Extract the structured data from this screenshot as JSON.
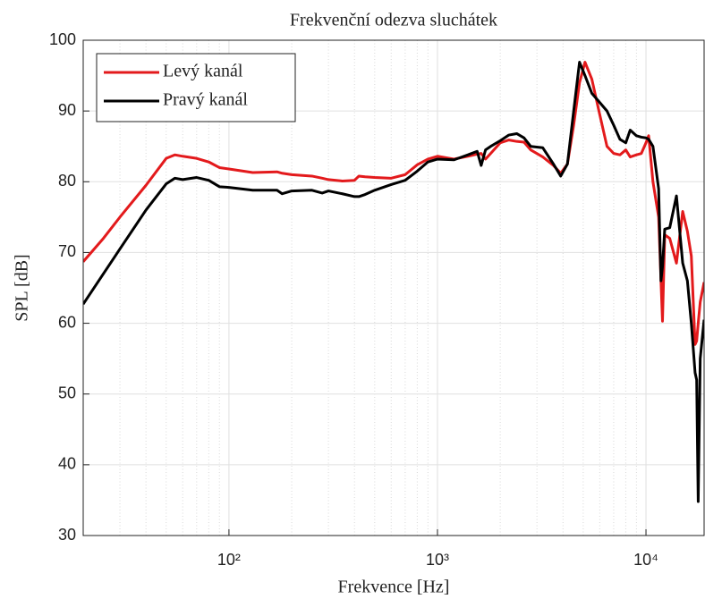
{
  "chart_data": {
    "type": "line",
    "title": "Frekvenční odezva sluchátek",
    "xlabel": "Frekvence [Hz]",
    "ylabel": "SPL [dB]",
    "xscale": "log",
    "grid": true,
    "legend": "upper left",
    "xlim": [
      20,
      19000
    ],
    "ylim": [
      30,
      100
    ],
    "xticks": [
      {
        "value": 100,
        "label": "10²"
      },
      {
        "value": 1000,
        "label": "10³"
      },
      {
        "value": 10000,
        "label": "10⁴"
      }
    ],
    "yticks": [
      30,
      40,
      50,
      60,
      70,
      80,
      90,
      100
    ],
    "x": [
      20,
      25,
      30,
      40,
      50,
      55,
      60,
      70,
      80,
      90,
      100,
      130,
      170,
      180,
      200,
      250,
      280,
      300,
      350,
      400,
      420,
      450,
      500,
      600,
      700,
      800,
      900,
      1000,
      1200,
      1400,
      1550,
      1620,
      1700,
      1800,
      2000,
      2200,
      2400,
      2600,
      2800,
      3200,
      3600,
      3900,
      4200,
      4500,
      4800,
      5100,
      5500,
      6000,
      6500,
      7000,
      7500,
      8000,
      8400,
      9000,
      9500,
      10000,
      10300,
      10800,
      11500,
      11800,
      12000,
      12300,
      13000,
      14000,
      15000,
      15800,
      16500,
      17200,
      17500,
      17800,
      18200,
      19000
    ],
    "series": [
      {
        "name": "Levý kanál",
        "color": "#e31a1c",
        "values": [
          68.7,
          72,
          75,
          79.5,
          83.3,
          83.8,
          83.6,
          83.3,
          82.8,
          82,
          81.8,
          81.3,
          81.4,
          81.2,
          81,
          80.8,
          80.5,
          80.3,
          80.1,
          80.2,
          80.8,
          80.7,
          80.6,
          80.5,
          81,
          82.4,
          83.2,
          83.6,
          83.2,
          83.6,
          83.9,
          84,
          83.2,
          84,
          85.5,
          85.9,
          85.7,
          85.6,
          84.5,
          83.5,
          82.3,
          81.2,
          82.5,
          88,
          94,
          96.9,
          94.5,
          89.5,
          85,
          84,
          83.8,
          84.5,
          83.5,
          83.8,
          84,
          85.5,
          86.5,
          80,
          75,
          66,
          60.3,
          72.5,
          72,
          68.5,
          75.8,
          73,
          69.5,
          57,
          57.5,
          60,
          63,
          65.8
        ]
      },
      {
        "name": "Pravý kanál",
        "color": "#000000",
        "values": [
          62.7,
          67,
          70.5,
          76,
          79.7,
          80.5,
          80.3,
          80.6,
          80.2,
          79.3,
          79.2,
          78.8,
          78.8,
          78.3,
          78.7,
          78.8,
          78.4,
          78.7,
          78.3,
          77.9,
          77.9,
          78.2,
          78.8,
          79.6,
          80.2,
          81.5,
          82.8,
          83.2,
          83.1,
          83.8,
          84.3,
          82.3,
          84.5,
          85,
          85.8,
          86.6,
          86.8,
          86.2,
          85,
          84.8,
          82.5,
          80.8,
          82.5,
          90,
          96.9,
          95,
          92.5,
          91.2,
          90,
          88,
          86,
          85.5,
          87.3,
          86.5,
          86.3,
          86.2,
          86,
          85,
          79,
          66,
          68,
          73.3,
          73.5,
          78,
          68.5,
          66,
          60,
          53,
          52,
          34.8,
          55,
          60.5
        ]
      }
    ]
  }
}
